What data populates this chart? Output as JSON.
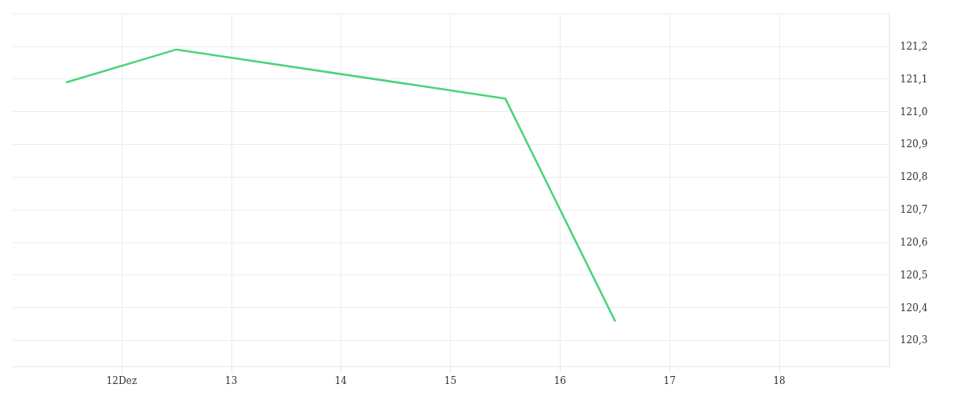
{
  "chart_data": {
    "type": "line",
    "x": [
      11.5,
      12.5,
      15.5,
      16.5
    ],
    "series": [
      {
        "color": "#4cd37a",
        "values": [
          121.09,
          121.19,
          121.04,
          120.36
        ]
      }
    ],
    "xlim": [
      11,
      19
    ],
    "xticks": [
      {
        "value": 12,
        "label": "12Dez"
      },
      13,
      14,
      15,
      16,
      17,
      18
    ],
    "ylim": [
      120.22,
      121.3
    ],
    "yticks": [
      {
        "value": 120.3,
        "label": "120,3"
      },
      {
        "value": 120.4,
        "label": "120,4"
      },
      {
        "value": 120.5,
        "label": "120,5"
      },
      {
        "value": 120.6,
        "label": "120,6"
      },
      {
        "value": 120.7,
        "label": "120,7"
      },
      {
        "value": 120.8,
        "label": "120,8"
      },
      {
        "value": 120.9,
        "label": "120,9"
      },
      {
        "value": 121.0,
        "label": "121,0"
      },
      {
        "value": 121.1,
        "label": "121,1"
      },
      {
        "value": 121.2,
        "label": "121,2"
      },
      {
        "value": 121.3,
        "label": null
      }
    ],
    "grid": true,
    "marker": "none",
    "line_style": "solid"
  }
}
